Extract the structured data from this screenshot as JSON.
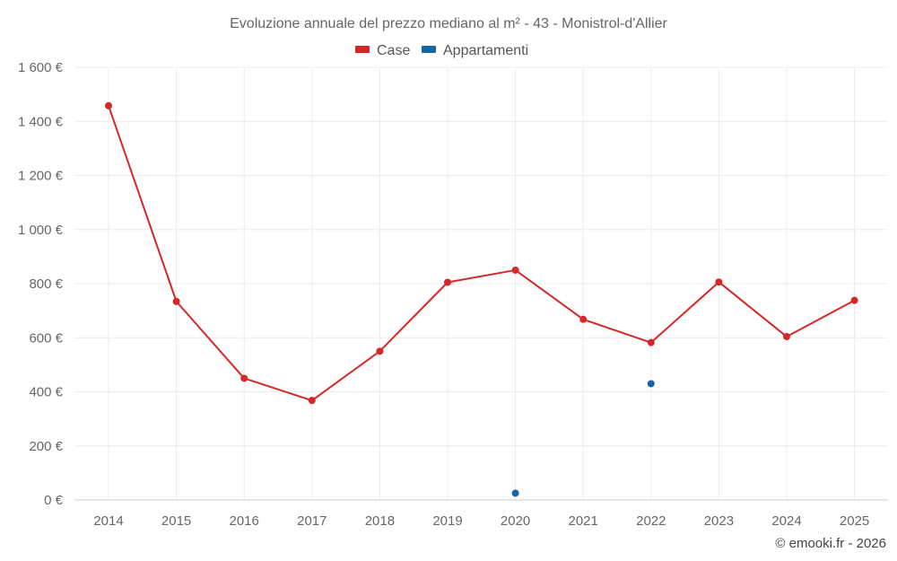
{
  "chart_data": {
    "type": "line",
    "title": "Evoluzione annuale del prezzo mediano al m² - 43 - Monistrol-d'Allier",
    "categories": [
      "2014",
      "2015",
      "2016",
      "2017",
      "2018",
      "2019",
      "2020",
      "2021",
      "2022",
      "2023",
      "2024",
      "2025"
    ],
    "series": [
      {
        "name": "Case",
        "color": "#d62728",
        "values": [
          1458,
          734,
          450,
          368,
          550,
          805,
          850,
          668,
          582,
          806,
          604,
          738
        ]
      },
      {
        "name": "Appartamenti",
        "color": "#1565a7",
        "values": [
          null,
          null,
          null,
          null,
          null,
          null,
          25,
          null,
          430,
          null,
          null,
          null
        ]
      }
    ],
    "ylim": [
      0,
      1600
    ],
    "yticks": [
      0,
      200,
      400,
      600,
      800,
      1000,
      1200,
      1400,
      1600
    ],
    "ytick_labels": [
      "0 €",
      "200 €",
      "400 €",
      "600 €",
      "800 €",
      "1 000 €",
      "1 200 €",
      "1 400 €",
      "1 600 €"
    ],
    "legend": "top-center",
    "grid": true
  },
  "credit": "© emooki.fr - 2026"
}
